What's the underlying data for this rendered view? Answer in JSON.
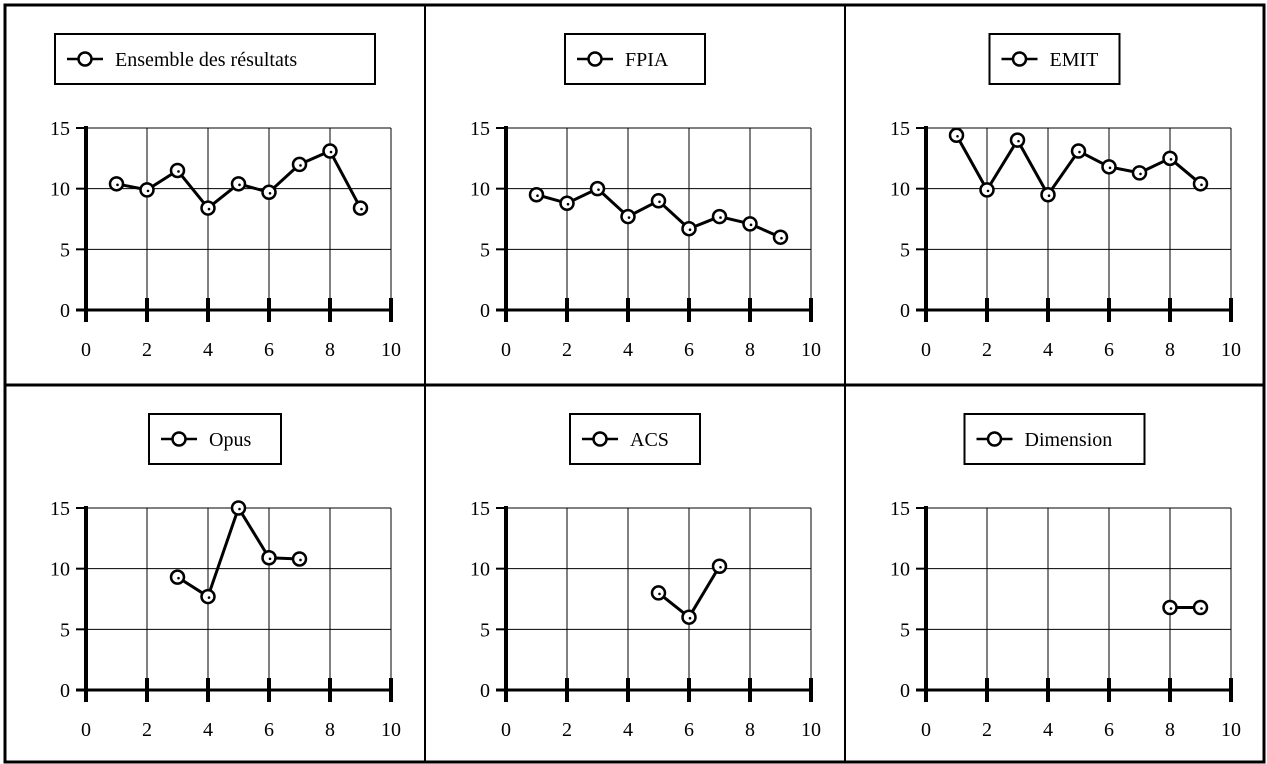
{
  "chart_data": [
    {
      "type": "line",
      "legend": "Ensemble des résultats",
      "x": [
        1,
        2,
        3,
        4,
        5,
        6,
        7,
        8,
        9
      ],
      "y": [
        10.4,
        9.9,
        11.5,
        8.4,
        10.4,
        9.7,
        12.0,
        13.1,
        8.4
      ],
      "xlim": [
        0,
        10
      ],
      "ylim": [
        0,
        15
      ],
      "xticks": [
        "0",
        "2",
        "4",
        "6",
        "8",
        "10"
      ],
      "yticks": [
        "0",
        "5",
        "10",
        "15"
      ],
      "grid": true,
      "legend_position": "top-center"
    },
    {
      "type": "line",
      "legend": "FPIA",
      "x": [
        1,
        2,
        3,
        4,
        5,
        6,
        7,
        8,
        9
      ],
      "y": [
        9.5,
        8.8,
        10.0,
        7.7,
        9.0,
        6.7,
        7.7,
        7.1,
        6.0
      ],
      "xlim": [
        0,
        10
      ],
      "ylim": [
        0,
        15
      ],
      "xticks": [
        "0",
        "2",
        "4",
        "6",
        "8",
        "10"
      ],
      "yticks": [
        "0",
        "5",
        "10",
        "15"
      ],
      "grid": true,
      "legend_position": "top-center"
    },
    {
      "type": "line",
      "legend": "EMIT",
      "x": [
        1,
        2,
        3,
        4,
        5,
        6,
        7,
        8,
        9
      ],
      "y": [
        14.4,
        9.9,
        14.0,
        9.5,
        13.1,
        11.8,
        11.3,
        12.5,
        10.4
      ],
      "xlim": [
        0,
        10
      ],
      "ylim": [
        0,
        15
      ],
      "xticks": [
        "0",
        "2",
        "4",
        "6",
        "8",
        "10"
      ],
      "yticks": [
        "0",
        "5",
        "10",
        "15"
      ],
      "grid": true,
      "legend_position": "top-center"
    },
    {
      "type": "line",
      "legend": "Opus",
      "x": [
        3,
        4,
        5,
        6,
        7
      ],
      "y": [
        9.3,
        7.7,
        15.0,
        10.9,
        10.8
      ],
      "xlim": [
        0,
        10
      ],
      "ylim": [
        0,
        15
      ],
      "xticks": [
        "0",
        "2",
        "4",
        "6",
        "8",
        "10"
      ],
      "yticks": [
        "0",
        "5",
        "10",
        "15"
      ],
      "grid": true,
      "legend_position": "top-center"
    },
    {
      "type": "line",
      "legend": "ACS",
      "x": [
        5,
        6,
        7
      ],
      "y": [
        8.0,
        6.0,
        10.2
      ],
      "xlim": [
        0,
        10
      ],
      "ylim": [
        0,
        15
      ],
      "xticks": [
        "0",
        "2",
        "4",
        "6",
        "8",
        "10"
      ],
      "yticks": [
        "0",
        "5",
        "10",
        "15"
      ],
      "grid": true,
      "legend_position": "top-center"
    },
    {
      "type": "line",
      "legend": "Dimension",
      "x": [
        8,
        9
      ],
      "y": [
        6.8,
        6.8
      ],
      "xlim": [
        0,
        10
      ],
      "ylim": [
        0,
        15
      ],
      "xticks": [
        "0",
        "2",
        "4",
        "6",
        "8",
        "10"
      ],
      "yticks": [
        "0",
        "5",
        "10",
        "15"
      ],
      "grid": true,
      "legend_position": "top-center"
    }
  ],
  "colors": {
    "line": "#000000",
    "grid": "#000000",
    "background": "#ffffff"
  },
  "marker_icon": "circle-marker-icon"
}
